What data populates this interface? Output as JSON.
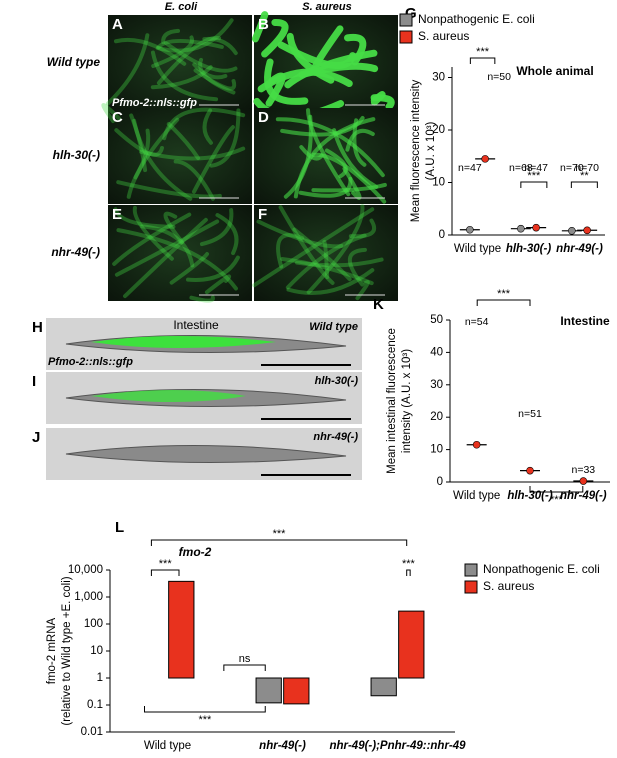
{
  "images": {
    "columns": [
      "E. coli",
      "S. aureus"
    ],
    "rows": [
      "Wild type",
      "hlh-30(-)",
      "nhr-49(-)"
    ],
    "letters": [
      "A",
      "B",
      "C",
      "D",
      "E",
      "F"
    ],
    "reporter": "Pfmo-2::nls::gfp"
  },
  "worms": {
    "letters": [
      "H",
      "I",
      "J"
    ],
    "labels": [
      "Wild type",
      "hlh-30(-)",
      "nhr-49(-)"
    ],
    "region": "Intestine",
    "reporter": "Pfmo-2::nls::gfp"
  },
  "chart_data": [
    {
      "type": "dot",
      "letter": "G",
      "title": "Whole animal",
      "y_label": "Mean fluorescence intensity",
      "y_label2": "(A.U. x 10³)",
      "categories": [
        "Wild type",
        "hlh-30(-)",
        "nhr-49(-)"
      ],
      "series": [
        {
          "name": "Nonpathogenic E. coli",
          "color": "#8c8c8c",
          "values": [
            1,
            1.2,
            0.8
          ],
          "n_labels": [
            "n=47",
            "n=68",
            "n=70"
          ]
        },
        {
          "name": "S. aureus",
          "color": "#e8321e",
          "values": [
            14.5,
            1.4,
            0.9
          ],
          "n_labels": [
            "n=50",
            "n=47",
            "n=70"
          ]
        }
      ],
      "significance": [
        "***",
        "***",
        "**"
      ],
      "ylim": [
        0,
        32
      ],
      "yticks": [
        0,
        10,
        20,
        30
      ],
      "legend": "top"
    },
    {
      "type": "dot",
      "letter": "K",
      "title": "Intestine",
      "y_label": "Mean intestinal fluorescence",
      "y_label2": "intensity (A.U. x 10³)",
      "categories": [
        "Wild type",
        "hlh-30(-)",
        "nhr-49(-)"
      ],
      "series": [
        {
          "color": "#e8321e",
          "values": [
            11.5,
            3.5,
            0.3
          ],
          "n_labels": [
            "n=54",
            "n=51",
            "n=33"
          ]
        }
      ],
      "significance": [
        "***",
        "***"
      ],
      "ylim": [
        0,
        50
      ],
      "yticks": [
        0,
        10,
        20,
        30,
        40,
        50
      ]
    },
    {
      "type": "bar",
      "letter": "L",
      "title": "fmo-2",
      "y_label": "fmo-2 mRNA",
      "y_label2": "(relative to Wild type +E. coli)",
      "categories": [
        "Wild type",
        "nhr-49(-)",
        "nhr-49(-);Pnhr-49::nhr-49"
      ],
      "series": [
        {
          "name": "Nonpathogenic E. coli",
          "color": "#8c8c8c",
          "values": [
            1,
            0.12,
            0.22
          ]
        },
        {
          "name": "S. aureus",
          "color": "#e8321e",
          "values": [
            3800,
            0.11,
            300
          ]
        }
      ],
      "significance": [
        "***",
        "***",
        "***",
        "ns",
        "***"
      ],
      "log": true,
      "ylim": [
        0.01,
        10000
      ],
      "yticks": [
        0.01,
        0.1,
        1,
        10,
        100,
        {
          "value": 1000,
          "label": "1,000"
        },
        {
          "value": 10000,
          "label": "10,000"
        }
      ],
      "legend": "right"
    }
  ]
}
